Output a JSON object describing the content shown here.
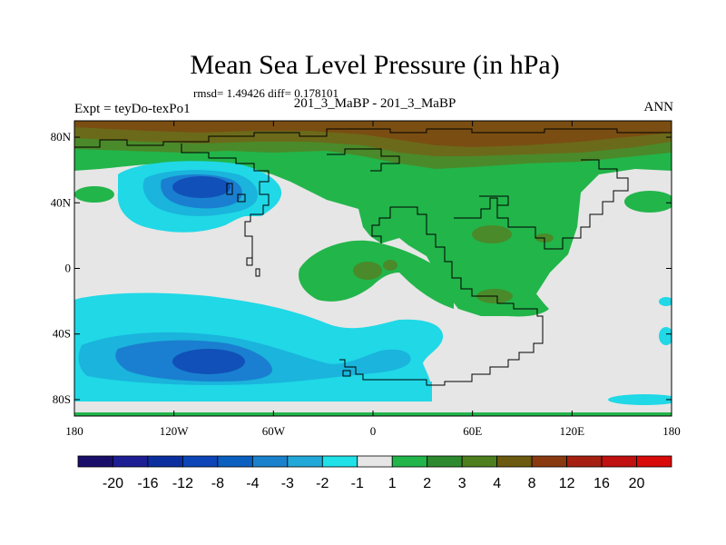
{
  "header": {
    "title": "Mean Sea Level Pressure (in hPa)",
    "stats": "rmsd= 1.49426 diff= 0.178101",
    "left_label": "Expt = teyDo-texPo1",
    "center_label": "201_3_MaBP - 201_3_MaBP",
    "right_label": "ANN"
  },
  "map": {
    "lon_range": [
      -180,
      180
    ],
    "lat_range": [
      -90,
      90
    ],
    "y_ticks": [
      "80N",
      "40N",
      "0",
      "40S",
      "80S"
    ],
    "x_ticks": [
      "180",
      "120W",
      "60W",
      "0",
      "60E",
      "120E",
      "180"
    ]
  },
  "colorbar": {
    "labels": [
      "-20",
      "-16",
      "-12",
      "-8",
      "-4",
      "-3",
      "-2",
      "-1",
      "1",
      "2",
      "3",
      "4",
      "8",
      "12",
      "16",
      "20"
    ],
    "colors": [
      "#1a0e6b",
      "#1d1d94",
      "#0c2fa0",
      "#0d45b8",
      "#0a5fc0",
      "#1a82cc",
      "#21a8d8",
      "#20e0e8",
      "#e6e6e6",
      "#22b54a",
      "#2e8a2e",
      "#4e7f1e",
      "#6c5a10",
      "#8a3a10",
      "#a52010",
      "#c01010",
      "#d80a0a"
    ]
  },
  "colors": {
    "neutral": "#e6e6e6",
    "cyan": "#20d8e6",
    "light_blue": "#1ab4dc",
    "blue": "#1a7fd0",
    "dark_blue": "#1150b8",
    "green": "#22b54a",
    "dark_green": "#4a8a2a",
    "olive": "#6b6a1a",
    "brown": "#7a4e12"
  }
}
